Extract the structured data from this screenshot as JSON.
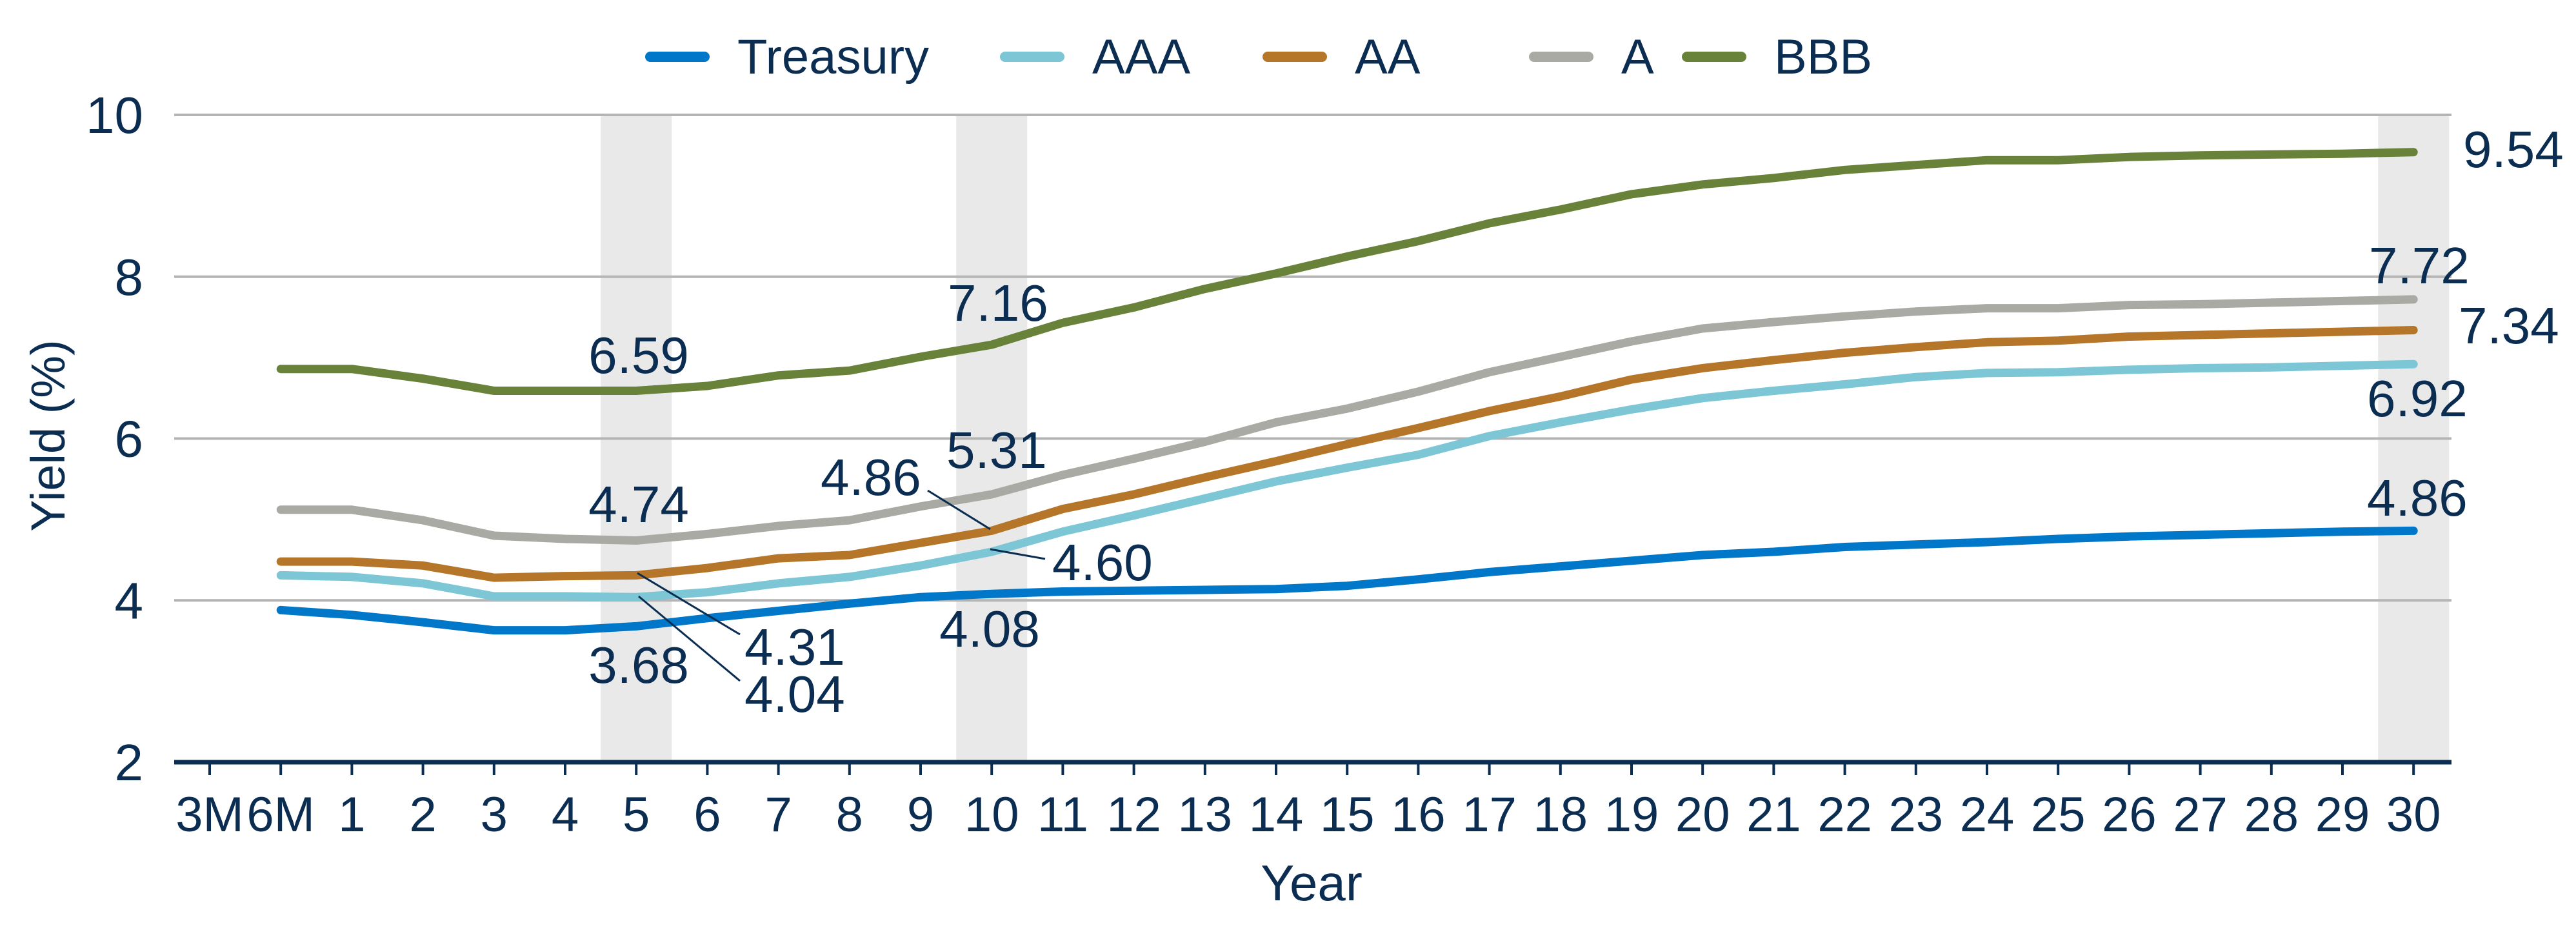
{
  "chart_data": {
    "type": "line",
    "title": "",
    "xlabel": "Year",
    "ylabel": "Yield (%)",
    "ylim": [
      2,
      10
    ],
    "yticks": [
      2,
      4,
      6,
      8,
      10
    ],
    "grid": "horizontal",
    "legend_position": "top",
    "highlighted_categories": [
      "5",
      "10",
      "30"
    ],
    "categories": [
      "3M",
      "6M",
      "1",
      "2",
      "3",
      "4",
      "5",
      "6",
      "7",
      "8",
      "9",
      "10",
      "11",
      "12",
      "13",
      "14",
      "15",
      "16",
      "17",
      "18",
      "19",
      "20",
      "21",
      "22",
      "23",
      "24",
      "25",
      "26",
      "27",
      "28",
      "29",
      "30"
    ],
    "series": [
      {
        "name": "Treasury",
        "color": "#0077c8",
        "values": [
          null,
          3.88,
          3.82,
          3.73,
          3.63,
          3.63,
          3.68,
          3.78,
          3.87,
          3.96,
          4.04,
          4.08,
          4.11,
          4.12,
          4.13,
          4.14,
          4.18,
          4.26,
          4.35,
          4.42,
          4.49,
          4.56,
          4.6,
          4.66,
          4.69,
          4.72,
          4.76,
          4.79,
          4.81,
          4.83,
          4.85,
          4.86
        ]
      },
      {
        "name": "AAA",
        "color": "#7cc6d6",
        "values": [
          null,
          4.31,
          4.29,
          4.21,
          4.05,
          4.05,
          4.04,
          4.1,
          4.21,
          4.29,
          4.43,
          4.6,
          4.85,
          5.05,
          5.26,
          5.47,
          5.64,
          5.8,
          6.03,
          6.2,
          6.36,
          6.5,
          6.59,
          6.67,
          6.76,
          6.81,
          6.82,
          6.85,
          6.87,
          6.88,
          6.9,
          6.92
        ]
      },
      {
        "name": "AA",
        "color": "#b5762a",
        "values": [
          null,
          4.48,
          4.48,
          4.43,
          4.28,
          4.3,
          4.31,
          4.4,
          4.52,
          4.56,
          4.71,
          4.86,
          5.13,
          5.31,
          5.52,
          5.72,
          5.93,
          6.13,
          6.34,
          6.52,
          6.73,
          6.87,
          6.97,
          7.06,
          7.13,
          7.19,
          7.21,
          7.26,
          7.28,
          7.3,
          7.32,
          7.34
        ]
      },
      {
        "name": "A",
        "color": "#aaaaa4",
        "values": [
          null,
          5.12,
          5.12,
          4.99,
          4.8,
          4.76,
          4.74,
          4.82,
          4.92,
          4.99,
          5.16,
          5.31,
          5.55,
          5.75,
          5.96,
          6.2,
          6.37,
          6.58,
          6.82,
          7.01,
          7.2,
          7.36,
          7.44,
          7.51,
          7.57,
          7.61,
          7.61,
          7.65,
          7.66,
          7.68,
          7.7,
          7.72
        ]
      },
      {
        "name": "BBB",
        "color": "#68823a",
        "values": [
          null,
          6.86,
          6.86,
          6.74,
          6.59,
          6.59,
          6.59,
          6.65,
          6.78,
          6.84,
          7.01,
          7.16,
          7.43,
          7.62,
          7.85,
          8.04,
          8.25,
          8.44,
          8.66,
          8.83,
          9.02,
          9.14,
          9.22,
          9.32,
          9.38,
          9.44,
          9.44,
          9.48,
          9.5,
          9.51,
          9.52,
          9.54
        ]
      }
    ],
    "annotations": [
      {
        "series": "BBB",
        "x": "5",
        "text": "6.59"
      },
      {
        "series": "A",
        "x": "5",
        "text": "4.74"
      },
      {
        "series": "AA",
        "x": "5",
        "text": "4.31"
      },
      {
        "series": "AAA",
        "x": "5",
        "text": "4.04"
      },
      {
        "series": "Treasury",
        "x": "5",
        "text": "3.68"
      },
      {
        "series": "BBB",
        "x": "10",
        "text": "7.16"
      },
      {
        "series": "A",
        "x": "10",
        "text": "5.31"
      },
      {
        "series": "AA",
        "x": "10",
        "text": "4.86"
      },
      {
        "series": "AAA",
        "x": "10",
        "text": "4.60"
      },
      {
        "series": "Treasury",
        "x": "10",
        "text": "4.08"
      },
      {
        "series": "BBB",
        "x": "30",
        "text": "9.54"
      },
      {
        "series": "A",
        "x": "30",
        "text": "7.72"
      },
      {
        "series": "AA",
        "x": "30",
        "text": "7.34"
      },
      {
        "series": "AAA",
        "x": "30",
        "text": "6.92"
      },
      {
        "series": "Treasury",
        "x": "30",
        "text": "4.86"
      }
    ]
  },
  "colors": {
    "text": "#0b2d52",
    "grid": "#b4b4b4",
    "band": "#e9e9e9"
  }
}
